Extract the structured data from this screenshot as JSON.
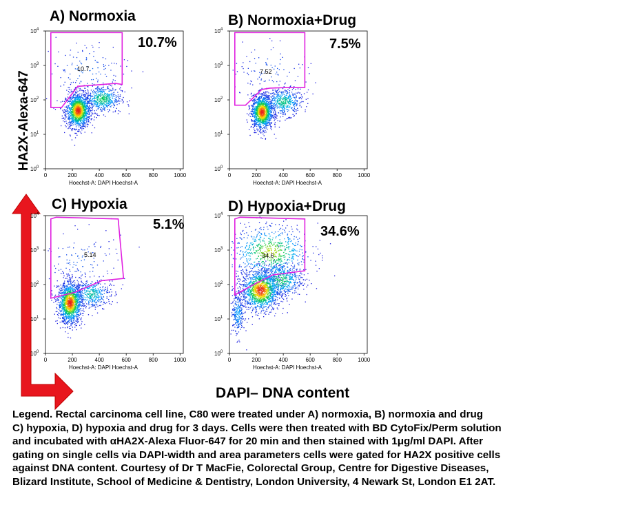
{
  "chart_data": {
    "type": "scatter",
    "ylabel": "HA2X-Alexa-647",
    "xaxis_caption": "DAPI– DNA content",
    "xaxis_scale": "linear",
    "yaxis_scale": "log",
    "xlim": [
      0,
      1024
    ],
    "ylim": [
      1,
      10000
    ],
    "x_ticks": [
      "0",
      "200",
      "400",
      "600",
      "800",
      "1000"
    ],
    "y_ticks": [
      "10^0",
      "10^1",
      "10^2",
      "10^3",
      "10^4"
    ],
    "gate_color": "#E020E0",
    "panels": [
      {
        "title": "A) Normoxia",
        "percent": "10.7%",
        "gate_label": "10.7",
        "xlabel": "Hoechst-A: DAPI Hoechst-A",
        "gate_polygon": [
          [
            40,
            1000
          ],
          [
            40,
            60
          ],
          [
            120,
            60
          ],
          [
            240,
            250
          ],
          [
            260,
            250
          ],
          [
            520,
            300
          ],
          [
            570,
            280
          ],
          [
            570,
            9000
          ],
          [
            40,
            9000
          ]
        ],
        "populations": [
          {
            "cx": 240,
            "cy": 50,
            "sx": 45,
            "sy": 0.25,
            "n": 1400
          },
          {
            "cx": 420,
            "cy": 110,
            "sx": 70,
            "sy": 0.2,
            "n": 500
          },
          {
            "cx": 300,
            "cy": 700,
            "sx": 160,
            "sy": 0.45,
            "n": 140
          }
        ]
      },
      {
        "title": "B) Normoxia+Drug",
        "percent": "7.5%",
        "gate_label": "7.52",
        "xlabel": "Hoechst-A: DAPI Hoechst-A",
        "gate_polygon": [
          [
            40,
            1000
          ],
          [
            40,
            70
          ],
          [
            120,
            70
          ],
          [
            240,
            200
          ],
          [
            300,
            220
          ],
          [
            440,
            230
          ],
          [
            560,
            230
          ],
          [
            560,
            9000
          ],
          [
            40,
            9000
          ]
        ],
        "populations": [
          {
            "cx": 240,
            "cy": 45,
            "sx": 40,
            "sy": 0.25,
            "n": 1300
          },
          {
            "cx": 400,
            "cy": 90,
            "sx": 70,
            "sy": 0.2,
            "n": 450
          },
          {
            "cx": 300,
            "cy": 800,
            "sx": 150,
            "sy": 0.45,
            "n": 100
          }
        ]
      },
      {
        "title": "C) Hypoxia",
        "percent": "5.1%",
        "gate_label": "5.14",
        "xlabel": "Hoechst-A: DAPI Hoechst-A",
        "gate_polygon": [
          [
            40,
            8000
          ],
          [
            80,
            9000
          ],
          [
            540,
            8000
          ],
          [
            580,
            150
          ],
          [
            420,
            130
          ],
          [
            220,
            60
          ],
          [
            40,
            40
          ]
        ],
        "populations": [
          {
            "cx": 180,
            "cy": 30,
            "sx": 45,
            "sy": 0.3,
            "n": 1400
          },
          {
            "cx": 340,
            "cy": 55,
            "sx": 70,
            "sy": 0.22,
            "n": 400
          },
          {
            "cx": 250,
            "cy": 500,
            "sx": 160,
            "sy": 0.45,
            "n": 120
          }
        ]
      },
      {
        "title": "D) Hypoxia+Drug",
        "percent": "34.6%",
        "gate_label": "34.6",
        "xlabel": "Hoechst-A: DAPI Hoechst-A",
        "gate_polygon": [
          [
            40,
            8000
          ],
          [
            80,
            9000
          ],
          [
            560,
            8000
          ],
          [
            560,
            250
          ],
          [
            320,
            190
          ],
          [
            180,
            100
          ],
          [
            40,
            50
          ]
        ],
        "populations": [
          {
            "cx": 230,
            "cy": 70,
            "sx": 70,
            "sy": 0.3,
            "n": 1300
          },
          {
            "cx": 380,
            "cy": 140,
            "sx": 80,
            "sy": 0.25,
            "n": 500
          },
          {
            "cx": 300,
            "cy": 900,
            "sx": 150,
            "sy": 0.4,
            "n": 700
          },
          {
            "cx": 60,
            "cy": 15,
            "sx": 25,
            "sy": 0.35,
            "n": 250
          }
        ]
      }
    ]
  },
  "legend_lines": [
    "Legend. Rectal carcinoma cell line, C80 were treated under A) normoxia, B) normoxia and drug",
    "C) hypoxia, D) hypoxia and drug for 3 days. Cells were then treated with BD CytoFix/Perm solution",
    "and incubated with αHA2X-Alexa Fluor-647 for 20 min and then stained with 1μg/ml DAPI. After",
    "gating on single cells via DAPI-width and area parameters cells were gated for HA2X positive cells",
    "against DNA content. Courtesy of Dr T MacFie, Colorectal Group, Centre for Digestive Diseases,",
    "Blizard Institute, School of Medicine & Dentistry, London University, 4 Newark St, London E1 2AT."
  ],
  "colors": {
    "arrow": "#E8161E",
    "gate": "#E020E0",
    "density_low": "#1A1AE0",
    "density_high": "#E81C1C"
  }
}
